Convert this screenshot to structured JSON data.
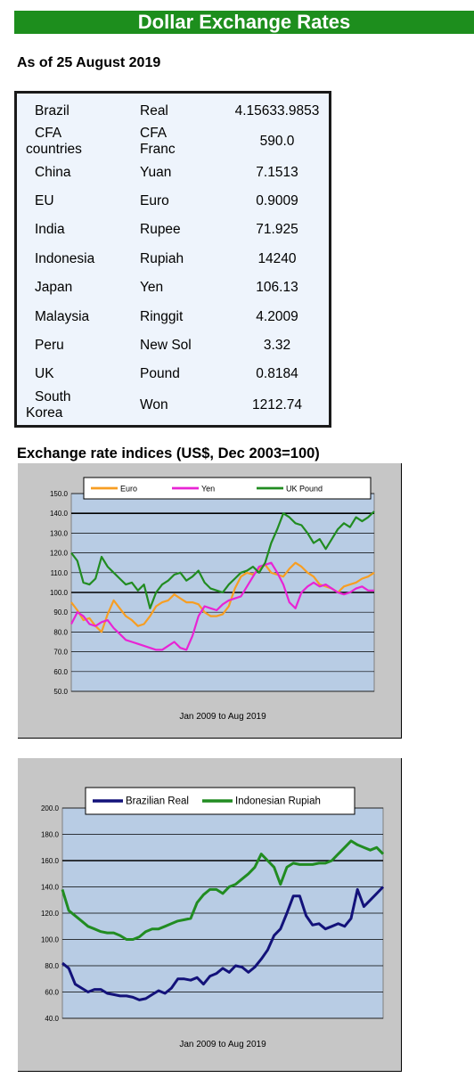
{
  "header": {
    "banner_title": "Dollar Exchange Rates",
    "as_of": "As of 25 August 2019"
  },
  "rates_table": {
    "rows": [
      {
        "country": "Brazil",
        "currency": "Real",
        "rate": "4.15633.9853"
      },
      {
        "country": "CFA countries",
        "country_line1": "CFA",
        "country_line2": "countries",
        "currency": "CFA Franc",
        "currency_line1": "CFA",
        "currency_line2": "Franc",
        "rate": "590.0"
      },
      {
        "country": "China",
        "currency": "Yuan",
        "rate": "7.1513"
      },
      {
        "country": "EU",
        "currency": "Euro",
        "rate": "0.9009"
      },
      {
        "country": "India",
        "currency": "Rupee",
        "rate": "71.925"
      },
      {
        "country": "Indonesia",
        "currency": "Rupiah",
        "rate": "14240"
      },
      {
        "country": "Japan",
        "currency": "Yen",
        "rate": "106.13"
      },
      {
        "country": "Malaysia",
        "currency": "Ringgit",
        "rate": "4.2009"
      },
      {
        "country": "Peru",
        "currency": "New Sol",
        "rate": "3.32"
      },
      {
        "country": "UK",
        "currency": "Pound",
        "rate": "0.8184"
      },
      {
        "country": "South Korea",
        "country_line1": "South",
        "country_line2": "Korea",
        "currency": "Won",
        "rate": "1212.74"
      }
    ]
  },
  "indices_section_title": "Exchange rate indices (US$, Dec 2003=100)",
  "chart_data": [
    {
      "type": "line",
      "title": "",
      "xlabel": "Jan 2009  to Aug 2019",
      "ylabel": "",
      "ylim": [
        50,
        150
      ],
      "yticks": [
        "50.0",
        "60.0",
        "70.0",
        "80.0",
        "90.0",
        "100.0",
        "110.0",
        "120.0",
        "130.0",
        "140.0",
        "150.0"
      ],
      "emphasized_gridlines": [
        100,
        140
      ],
      "legend_position": "top",
      "plot_background": "#b8cce4",
      "series": [
        {
          "name": "Euro",
          "color": "#f79e22",
          "x": [
            0,
            0.02,
            0.04,
            0.06,
            0.08,
            0.1,
            0.12,
            0.14,
            0.16,
            0.18,
            0.2,
            0.22,
            0.24,
            0.26,
            0.28,
            0.3,
            0.32,
            0.34,
            0.36,
            0.38,
            0.4,
            0.42,
            0.44,
            0.46,
            0.48,
            0.5,
            0.52,
            0.54,
            0.56,
            0.58,
            0.6,
            0.62,
            0.64,
            0.66,
            0.68,
            0.7,
            0.72,
            0.74,
            0.76,
            0.78,
            0.8,
            0.82,
            0.84,
            0.86,
            0.88,
            0.9,
            0.92,
            0.94,
            0.96,
            0.98,
            1
          ],
          "values": [
            95,
            91,
            86,
            87,
            83,
            80,
            89,
            96,
            92,
            88,
            86,
            83,
            84,
            88,
            93,
            95,
            96,
            99,
            97,
            95,
            95,
            94,
            90,
            88,
            88,
            89,
            93,
            102,
            108,
            110,
            109,
            112,
            114,
            110,
            109,
            108,
            112,
            115,
            113,
            110,
            108,
            104,
            103,
            102,
            100,
            103,
            104,
            105,
            107,
            108,
            110
          ]
        },
        {
          "name": "Yen",
          "color": "#e824d4",
          "x": [
            0,
            0.02,
            0.04,
            0.06,
            0.08,
            0.1,
            0.12,
            0.14,
            0.16,
            0.18,
            0.2,
            0.22,
            0.24,
            0.26,
            0.28,
            0.3,
            0.32,
            0.34,
            0.36,
            0.38,
            0.4,
            0.42,
            0.44,
            0.46,
            0.48,
            0.5,
            0.52,
            0.54,
            0.56,
            0.58,
            0.6,
            0.62,
            0.64,
            0.66,
            0.68,
            0.7,
            0.72,
            0.74,
            0.76,
            0.78,
            0.8,
            0.82,
            0.84,
            0.86,
            0.88,
            0.9,
            0.92,
            0.94,
            0.96,
            0.98,
            1
          ],
          "values": [
            84,
            90,
            88,
            84,
            83,
            85,
            86,
            82,
            79,
            76,
            75,
            74,
            73,
            72,
            71,
            71,
            73,
            75,
            72,
            71,
            78,
            88,
            93,
            92,
            91,
            94,
            96,
            97,
            98,
            103,
            108,
            113,
            114,
            115,
            110,
            104,
            95,
            92,
            100,
            103,
            105,
            103,
            104,
            102,
            100,
            99,
            100,
            102,
            103,
            101,
            101
          ]
        },
        {
          "name": "UK Pound",
          "color": "#218c21",
          "x": [
            0,
            0.02,
            0.04,
            0.06,
            0.08,
            0.1,
            0.12,
            0.14,
            0.16,
            0.18,
            0.2,
            0.22,
            0.24,
            0.26,
            0.28,
            0.3,
            0.32,
            0.34,
            0.36,
            0.38,
            0.4,
            0.42,
            0.44,
            0.46,
            0.48,
            0.5,
            0.52,
            0.54,
            0.56,
            0.58,
            0.6,
            0.62,
            0.64,
            0.66,
            0.68,
            0.7,
            0.72,
            0.74,
            0.76,
            0.78,
            0.8,
            0.82,
            0.84,
            0.86,
            0.88,
            0.9,
            0.92,
            0.94,
            0.96,
            0.98,
            1
          ],
          "values": [
            120,
            116,
            105,
            104,
            107,
            118,
            113,
            110,
            107,
            104,
            105,
            101,
            104,
            92,
            100,
            104,
            106,
            109,
            110,
            106,
            108,
            111,
            105,
            102,
            101,
            100,
            104,
            107,
            110,
            111,
            113,
            110,
            115,
            125,
            132,
            140,
            138,
            135,
            134,
            130,
            125,
            127,
            122,
            127,
            132,
            135,
            133,
            138,
            136,
            138,
            141
          ]
        }
      ]
    },
    {
      "type": "line",
      "title": "",
      "xlabel": "Jan 2009  to Aug 2019",
      "ylabel": "",
      "ylim": [
        40,
        200
      ],
      "yticks": [
        "40.0",
        "60.0",
        "80.0",
        "100.0",
        "120.0",
        "140.0",
        "160.0",
        "180.0",
        "200.0"
      ],
      "emphasized_gridlines": [
        160
      ],
      "legend_position": "top",
      "plot_background": "#b8cce4",
      "series": [
        {
          "name": "Brazilian Real",
          "color": "#13127a",
          "x": [
            0,
            0.02,
            0.04,
            0.06,
            0.08,
            0.1,
            0.12,
            0.14,
            0.16,
            0.18,
            0.2,
            0.22,
            0.24,
            0.26,
            0.28,
            0.3,
            0.32,
            0.34,
            0.36,
            0.38,
            0.4,
            0.42,
            0.44,
            0.46,
            0.48,
            0.5,
            0.52,
            0.54,
            0.56,
            0.58,
            0.6,
            0.62,
            0.64,
            0.66,
            0.68,
            0.7,
            0.72,
            0.74,
            0.76,
            0.78,
            0.8,
            0.82,
            0.84,
            0.86,
            0.88,
            0.9,
            0.92,
            0.94,
            0.96,
            0.98,
            1
          ],
          "values": [
            82,
            78,
            66,
            63,
            60,
            62,
            62,
            59,
            58,
            57,
            57,
            56,
            54,
            55,
            58,
            61,
            59,
            63,
            70,
            70,
            69,
            71,
            66,
            72,
            74,
            78,
            75,
            80,
            79,
            75,
            79,
            85,
            92,
            103,
            108,
            120,
            133,
            133,
            118,
            111,
            112,
            108,
            110,
            112,
            110,
            116,
            138,
            125,
            130,
            135,
            140
          ]
        },
        {
          "name": "Indonesian Rupiah",
          "color": "#218c21",
          "x": [
            0,
            0.02,
            0.04,
            0.06,
            0.08,
            0.1,
            0.12,
            0.14,
            0.16,
            0.18,
            0.2,
            0.22,
            0.24,
            0.26,
            0.28,
            0.3,
            0.32,
            0.34,
            0.36,
            0.38,
            0.4,
            0.42,
            0.44,
            0.46,
            0.48,
            0.5,
            0.52,
            0.54,
            0.56,
            0.58,
            0.6,
            0.62,
            0.64,
            0.66,
            0.68,
            0.7,
            0.72,
            0.74,
            0.76,
            0.78,
            0.8,
            0.82,
            0.84,
            0.86,
            0.88,
            0.9,
            0.92,
            0.94,
            0.96,
            0.98,
            1
          ],
          "values": [
            138,
            122,
            118,
            114,
            110,
            108,
            106,
            105,
            105,
            103,
            100,
            100,
            102,
            106,
            108,
            108,
            110,
            112,
            114,
            115,
            116,
            128,
            134,
            138,
            138,
            135,
            140,
            142,
            146,
            150,
            155,
            165,
            160,
            155,
            142,
            155,
            158,
            157,
            157,
            157,
            158,
            158,
            160,
            165,
            170,
            175,
            172,
            170,
            168,
            170,
            165
          ]
        }
      ]
    }
  ]
}
